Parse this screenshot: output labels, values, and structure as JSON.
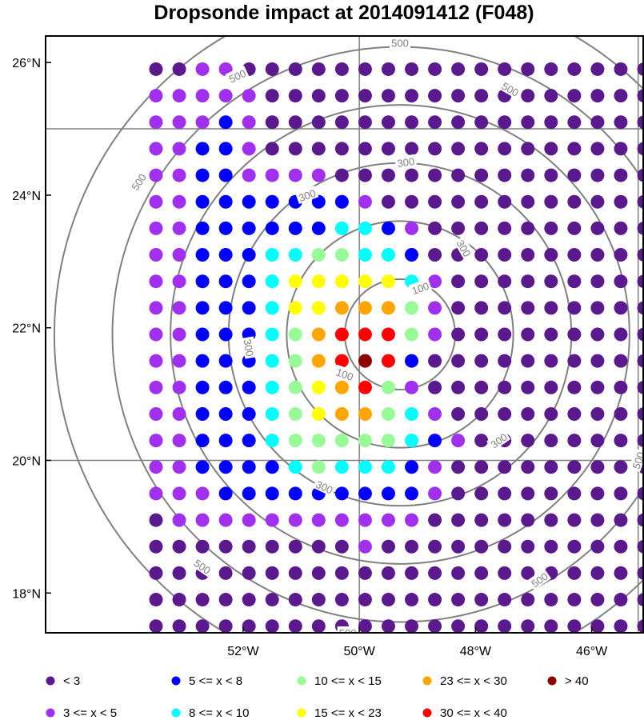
{
  "title": "Dropsonde impact at 2014091412 (F048)",
  "chart_data": {
    "type": "scatter",
    "lon_range": [
      -55.4,
      -45.1
    ],
    "lat_range": [
      17.4,
      26.4
    ],
    "lon_ticks": [
      {
        "value": -52,
        "label": "52°W"
      },
      {
        "value": -50,
        "label": "50°W"
      },
      {
        "value": -48,
        "label": "48°W"
      },
      {
        "value": -46,
        "label": "46°W"
      }
    ],
    "lat_ticks": [
      {
        "value": 18,
        "label": "18°N"
      },
      {
        "value": 20,
        "label": "20°N"
      },
      {
        "value": 22,
        "label": "22°N"
      },
      {
        "value": 24,
        "label": "24°N"
      },
      {
        "value": 26,
        "label": "26°N"
      }
    ],
    "grid_lines": {
      "lon": [
        -50,
        -45.2
      ],
      "lat": [
        20,
        25
      ]
    },
    "center": {
      "lon": -49.3,
      "lat": 21.9
    },
    "contour_rings": [
      {
        "value": 100,
        "r_deg": 0.95
      },
      {
        "value": 300,
        "r_deg": 1.95
      },
      {
        "value": 300,
        "r_deg": 2.95
      },
      {
        "value": 500,
        "r_deg": 3.95
      },
      {
        "value": 500,
        "r_deg": 4.95
      },
      {
        "value": 500,
        "r_deg": 5.95
      }
    ],
    "contour_labels": [
      {
        "text": "100",
        "lon": -48.95,
        "lat": 22.6,
        "angle": -20
      },
      {
        "text": "100",
        "lon": -50.25,
        "lat": 21.3,
        "angle": 20
      },
      {
        "text": "300",
        "lon": -48.2,
        "lat": 23.2,
        "angle": 60
      },
      {
        "text": "300",
        "lon": -51.9,
        "lat": 21.7,
        "angle": 80
      },
      {
        "text": "300",
        "lon": -47.6,
        "lat": 20.3,
        "angle": -35
      },
      {
        "text": "300",
        "lon": -50.6,
        "lat": 19.6,
        "angle": 25
      },
      {
        "text": "300",
        "lon": -50.9,
        "lat": 24.0,
        "angle": -20
      },
      {
        "text": "300",
        "lon": -49.2,
        "lat": 24.5,
        "angle": -8
      },
      {
        "text": "500",
        "lon": -53.8,
        "lat": 24.2,
        "angle": -55
      },
      {
        "text": "500",
        "lon": -52.1,
        "lat": 25.8,
        "angle": -25
      },
      {
        "text": "500",
        "lon": -49.3,
        "lat": 26.3,
        "angle": 0
      },
      {
        "text": "500",
        "lon": -47.4,
        "lat": 25.6,
        "angle": 30
      },
      {
        "text": "500",
        "lon": -45.2,
        "lat": 20.0,
        "angle": -70
      },
      {
        "text": "500",
        "lon": -46.9,
        "lat": 18.2,
        "angle": -35
      },
      {
        "text": "500",
        "lon": -52.7,
        "lat": 18.4,
        "angle": 35
      },
      {
        "text": "500",
        "lon": -50.2,
        "lat": 17.4,
        "angle": 0
      }
    ],
    "points": {
      "lon_start": -53.5,
      "lon_step": 0.4,
      "lat_start": 25.9,
      "lat_step": -0.4,
      "rows": [
        "1122111111111111111111",
        "2222211111111111111111",
        "2223211111111111111111",
        "2233211111111111111111",
        "2233222211111111111111",
        "2233333332111111111111",
        "2233333344321111111111",
        "2233344554431111111111",
        "2233346666642111111111",
        "2233346677752111111111",
        "2233345788852111111111",
        "2233345789831111111111",
        "2233345678521111111111",
        "2233345677542111111111",
        "2233345555543211111111",
        "2233334544432111111111",
        "2223333333332111111111",
        "1222222222221111111111",
        "1111111112111111111111",
        "1111111111111111111111",
        "1111111111111111111111",
        "1111111111111111111111"
      ]
    },
    "legend": [
      {
        "label": "<  3",
        "color": "#5a1a8e"
      },
      {
        "label": "3 <= x <  5",
        "color": "#a030ee"
      },
      {
        "label": "5 <= x <  8",
        "color": "#0000ff"
      },
      {
        "label": "8 <= x < 10",
        "color": "#00ffff"
      },
      {
        "label": "10 <= x < 15",
        "color": "#98fb98"
      },
      {
        "label": "15 <= x < 23",
        "color": "#ffff00"
      },
      {
        "label": "23 <= x < 30",
        "color": "#ffa500"
      },
      {
        "label": "30 <= x < 40",
        "color": "#ff0000"
      },
      {
        "label": "> 40",
        "color": "#8b0000"
      }
    ],
    "colors": {
      "frame": "#000000",
      "grid": "#808080",
      "contour": "#808080"
    }
  }
}
